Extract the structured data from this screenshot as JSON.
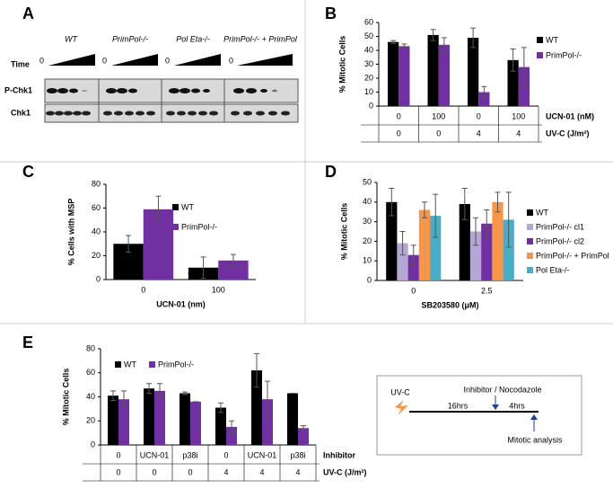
{
  "panel_labels": [
    "A",
    "B",
    "C",
    "D",
    "E"
  ],
  "blot": {
    "time_label": "Time",
    "zero_label": "0",
    "rows": [
      "P-Chk1",
      "Chk1"
    ],
    "lanes": [
      "WT",
      "PrimPol-/-",
      "Pol Eta-/-",
      "PrimPol-/- + PrimPol"
    ]
  },
  "diagram": {
    "start": "UV-C",
    "first_interval": "16hrs",
    "treatment": "Inhibitor / Nocodazole",
    "second_interval": "4hrs",
    "end": "Mitotic analysis"
  },
  "chart_data": [
    {
      "type": "bar",
      "ylabel": "% Mitotic Cells",
      "ylim": [
        0,
        60
      ],
      "yticks": [
        0,
        10,
        20,
        30,
        40,
        50,
        60
      ],
      "category_rows": [
        {
          "name": "UCN-01 (nM)",
          "labels": [
            "0",
            "100",
            "0",
            "100"
          ]
        },
        {
          "name": "UV-C (J/m²)",
          "labels": [
            "0",
            "0",
            "4",
            "4"
          ]
        }
      ],
      "series": [
        {
          "name": "WT",
          "color": "#000000",
          "values": [
            46,
            51,
            49,
            33
          ],
          "errors": [
            1,
            4,
            7,
            8
          ]
        },
        {
          "name": "PrimPol-/-",
          "color": "#7030a0",
          "values": [
            43,
            44,
            10,
            28
          ],
          "errors": [
            1.5,
            5,
            4,
            14
          ]
        }
      ]
    },
    {
      "type": "bar",
      "ylabel": "% Cells with MSP",
      "xlabel": "UCN-01 (nm)",
      "ylim": [
        0,
        80
      ],
      "yticks": [
        0,
        20,
        40,
        60,
        80
      ],
      "categories": [
        "0",
        "100"
      ],
      "series": [
        {
          "name": "WT",
          "color": "#000000",
          "values": [
            30,
            10
          ],
          "errors": [
            7,
            9
          ]
        },
        {
          "name": "PrimPol-/-",
          "color": "#7030a0",
          "values": [
            59,
            16
          ],
          "errors": [
            11,
            5
          ]
        }
      ]
    },
    {
      "type": "bar",
      "ylabel": "% Mitotic Cells",
      "xlabel": "SB203580 (μM)",
      "ylim": [
        0,
        50
      ],
      "yticks": [
        0,
        10,
        20,
        30,
        40,
        50
      ],
      "categories": [
        "0",
        "2.5"
      ],
      "series": [
        {
          "name": "WT",
          "color": "#000000",
          "values": [
            40,
            39
          ],
          "errors": [
            7,
            8
          ]
        },
        {
          "name": "PrimPol-/- cl1",
          "color": "#b4a7d6",
          "values": [
            19,
            25
          ],
          "errors": [
            6,
            7
          ]
        },
        {
          "name": "PrimPol-/- cl2",
          "color": "#7030a0",
          "values": [
            13,
            29
          ],
          "errors": [
            5,
            7
          ]
        },
        {
          "name": "PrimPol-/- + PrimPol",
          "color": "#f79646",
          "values": [
            36,
            40
          ],
          "errors": [
            4,
            5
          ]
        },
        {
          "name": "Pol Eta-/-",
          "color": "#4bacc6",
          "values": [
            33,
            31
          ],
          "errors": [
            11,
            14
          ]
        }
      ]
    },
    {
      "type": "bar",
      "ylabel": "% Mitotic Cells",
      "ylim": [
        0,
        80
      ],
      "yticks": [
        0,
        20,
        40,
        60,
        80
      ],
      "category_rows": [
        {
          "name": "Inhibitor",
          "labels": [
            "0",
            "UCN-01",
            "p38i",
            "0",
            "UCN-01",
            "p38i"
          ]
        },
        {
          "name": "UV-C (J/m²)",
          "labels": [
            "0",
            "0",
            "0",
            "4",
            "4",
            "4"
          ]
        }
      ],
      "series": [
        {
          "name": "WT",
          "color": "#000000",
          "values": [
            41,
            47,
            43,
            31,
            62,
            43
          ],
          "errors": [
            4,
            4,
            1,
            4,
            14,
            0
          ]
        },
        {
          "name": "PrimPol-/-",
          "color": "#7030a0",
          "values": [
            38,
            45,
            36,
            15,
            38,
            14
          ],
          "errors": [
            7,
            6,
            0,
            5,
            15,
            2
          ]
        }
      ]
    }
  ]
}
